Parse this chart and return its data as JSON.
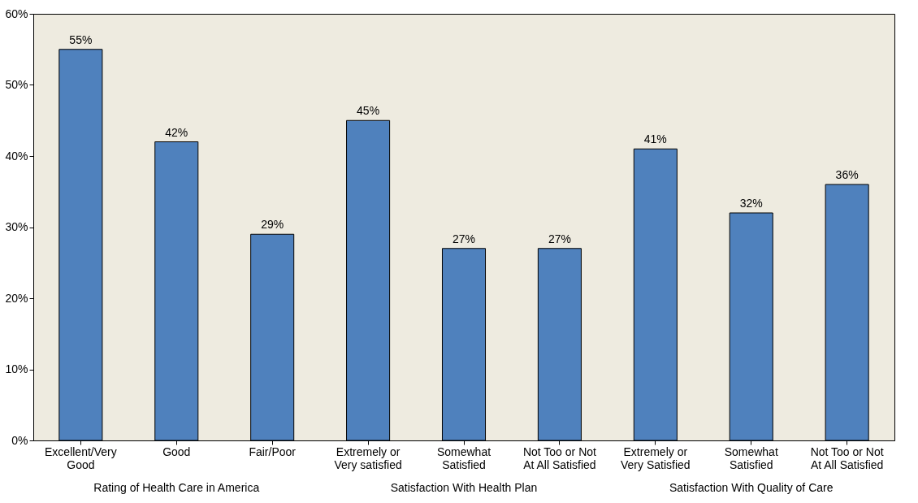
{
  "chart_data": {
    "type": "bar",
    "categories": [
      "Excellent/Very\nGood",
      "Good",
      "Fair/Poor",
      "Extremely or\nVery satisfied",
      "Somewhat\nSatisfied",
      "Not Too or Not\nAt All Satisfied",
      "Extremely or\nVery Satisfied",
      "Somewhat\nSatisfied",
      "Not Too or Not\nAt All Satisfied"
    ],
    "values": [
      55,
      42,
      29,
      45,
      27,
      27,
      41,
      32,
      36
    ],
    "value_labels": [
      "55%",
      "42%",
      "29%",
      "45%",
      "27%",
      "27%",
      "41%",
      "32%",
      "36%"
    ],
    "color": "#4f81bd",
    "ylim": [
      0,
      60
    ],
    "yticks": [
      {
        "value": 0,
        "label": "0%"
      },
      {
        "value": 10,
        "label": "10%"
      },
      {
        "value": 20,
        "label": "20%"
      },
      {
        "value": 30,
        "label": "30%"
      },
      {
        "value": 40,
        "label": "40%"
      },
      {
        "value": 50,
        "label": "50%"
      },
      {
        "value": 60,
        "label": "60%"
      }
    ],
    "annotations": [
      "Rating of Health Care in America",
      "Satisfaction With Health Plan",
      "Satisfaction With Quality of Care"
    ],
    "grid": false
  }
}
